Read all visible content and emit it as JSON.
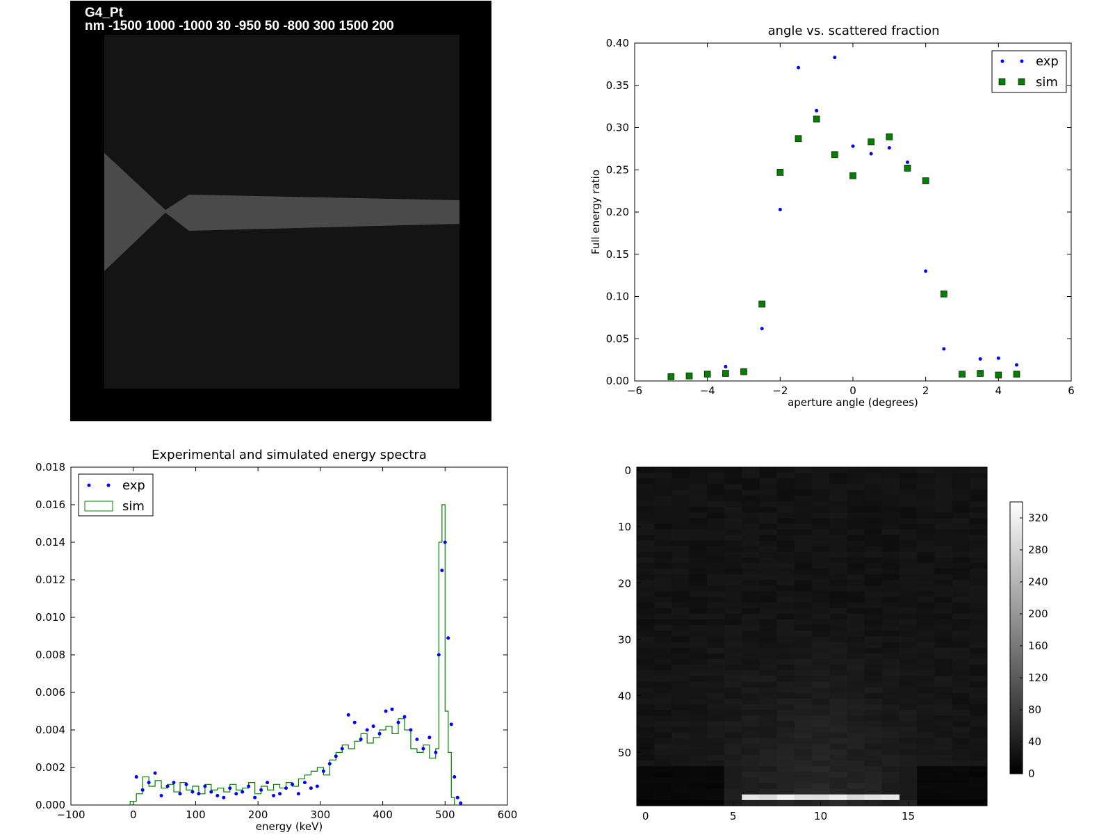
{
  "geometry_panel": {
    "label": "G4_Pt",
    "params": "nm -1500 1000 -1000 30 -950 50 -800 300 1500 200",
    "colors": {
      "background": "#000000",
      "inner": "#141414",
      "shape": "#4a4a4a"
    }
  },
  "chart_data": [
    {
      "type": "scatter",
      "title": "angle vs. scattered fraction",
      "xlabel": "aperture angle (degrees)",
      "ylabel": "Full energy ratio",
      "xlim": [
        -6,
        6
      ],
      "ylim": [
        0,
        0.4
      ],
      "xticks": [
        "−6",
        "−4",
        "−2",
        "0",
        "2",
        "4",
        "6"
      ],
      "yticks": [
        "0.00",
        "0.05",
        "0.10",
        "0.15",
        "0.20",
        "0.25",
        "0.30",
        "0.35",
        "0.40"
      ],
      "legend_position": "top-right",
      "series": [
        {
          "name": "exp",
          "marker": "dot",
          "color": "#0000ff",
          "x": [
            -3.5,
            -2.5,
            -2,
            -1.5,
            -1,
            -0.5,
            0,
            0.5,
            1,
            1.5,
            2,
            2.5,
            3.5,
            4,
            4.5
          ],
          "y": [
            0.017,
            0.062,
            0.203,
            0.371,
            0.32,
            0.383,
            0.278,
            0.269,
            0.276,
            0.259,
            0.13,
            0.038,
            0.026,
            0.027,
            0.019
          ]
        },
        {
          "name": "sim",
          "marker": "square",
          "color": "#007f00",
          "x": [
            -5,
            -4.5,
            -4,
            -3.5,
            -3,
            -2.5,
            -2,
            -1.5,
            -1,
            -0.5,
            0,
            0.5,
            1,
            1.5,
            2,
            2.5,
            3,
            3.5,
            4,
            4.5
          ],
          "y": [
            0.005,
            0.006,
            0.008,
            0.009,
            0.011,
            0.091,
            0.247,
            0.287,
            0.31,
            0.268,
            0.243,
            0.283,
            0.289,
            0.252,
            0.237,
            0.103,
            0.008,
            0.009,
            0.007,
            0.008
          ]
        }
      ]
    },
    {
      "type": "line",
      "title": "Experimental and simulated energy spectra",
      "xlabel": "energy (keV)",
      "ylabel": "",
      "xlim": [
        -100,
        600
      ],
      "ylim": [
        0,
        0.018
      ],
      "xticks": [
        "−100",
        "0",
        "100",
        "200",
        "300",
        "400",
        "500",
        "600"
      ],
      "yticks": [
        "0.000",
        "0.002",
        "0.004",
        "0.006",
        "0.008",
        "0.010",
        "0.012",
        "0.014",
        "0.016",
        "0.018"
      ],
      "legend_position": "top-left",
      "series": [
        {
          "name": "exp",
          "marker": "dot",
          "color": "#0000ff",
          "x": [
            5,
            15,
            25,
            35,
            45,
            55,
            65,
            75,
            85,
            95,
            105,
            115,
            125,
            135,
            145,
            155,
            165,
            175,
            185,
            195,
            205,
            215,
            225,
            235,
            245,
            255,
            265,
            275,
            285,
            295,
            305,
            315,
            325,
            335,
            345,
            355,
            365,
            375,
            385,
            395,
            405,
            415,
            425,
            435,
            445,
            455,
            465,
            475,
            485,
            490,
            495,
            500,
            505,
            510,
            515,
            520,
            525
          ],
          "y": [
            0.0015,
            0.0008,
            0.0012,
            0.0017,
            0.0005,
            0.001,
            0.0012,
            0.0006,
            0.0011,
            0.0007,
            0.0006,
            0.001,
            0.0007,
            0.0005,
            0.0004,
            0.0009,
            0.0006,
            0.0007,
            0.001,
            0.0004,
            0.0008,
            0.0012,
            0.0005,
            0.0006,
            0.0009,
            0.0011,
            0.0006,
            0.0012,
            0.0009,
            0.001,
            0.0018,
            0.0022,
            0.0026,
            0.003,
            0.0048,
            0.0044,
            0.0035,
            0.004,
            0.0042,
            0.0038,
            0.005,
            0.0051,
            0.0044,
            0.0047,
            0.004,
            0.0035,
            0.003,
            0.0036,
            0.0028,
            0.008,
            0.0125,
            0.014,
            0.0089,
            0.0043,
            0.0015,
            0.0004,
            0.0001
          ]
        },
        {
          "name": "sim",
          "marker": "step",
          "color": "#008000",
          "x": [
            -5,
            5,
            15,
            25,
            35,
            45,
            55,
            65,
            75,
            85,
            95,
            105,
            115,
            125,
            135,
            145,
            155,
            165,
            175,
            185,
            195,
            205,
            215,
            225,
            235,
            245,
            255,
            265,
            275,
            285,
            295,
            305,
            315,
            325,
            335,
            345,
            355,
            365,
            375,
            385,
            395,
            405,
            415,
            425,
            435,
            445,
            455,
            465,
            475,
            485,
            490,
            495,
            500,
            505,
            510,
            515
          ],
          "y": [
            0.0002,
            0.0006,
            0.0015,
            0.001,
            0.0013,
            0.0009,
            0.0011,
            0.0007,
            0.0012,
            0.0008,
            0.001,
            0.0006,
            0.0011,
            0.0008,
            0.0009,
            0.0007,
            0.0011,
            0.0008,
            0.0009,
            0.0012,
            0.0006,
            0.001,
            0.0008,
            0.0011,
            0.0009,
            0.0012,
            0.001,
            0.0014,
            0.0016,
            0.0018,
            0.002,
            0.0016,
            0.0024,
            0.0028,
            0.0032,
            0.003,
            0.0034,
            0.0038,
            0.0033,
            0.0036,
            0.004,
            0.0042,
            0.0038,
            0.0046,
            0.004,
            0.003,
            0.0028,
            0.0032,
            0.0025,
            0.003,
            0.014,
            0.016,
            0.005,
            0.0028,
            0.0004,
            0.0
          ]
        }
      ]
    },
    {
      "type": "heatmap",
      "title": "",
      "rows": 60,
      "cols": 20,
      "xticks": [
        "0",
        "5",
        "10",
        "15"
      ],
      "yticks": [
        "0",
        "10",
        "20",
        "30",
        "40",
        "50"
      ],
      "colorbar_ticks": [
        "0",
        "40",
        "80",
        "120",
        "160",
        "200",
        "240",
        "280",
        "320"
      ],
      "colorbar_range": [
        0,
        340
      ],
      "colormap": "gray",
      "base_level": 25,
      "bright_rows": [
        58
      ],
      "bright_cols": [
        6,
        14
      ],
      "bright_value": 320
    }
  ]
}
